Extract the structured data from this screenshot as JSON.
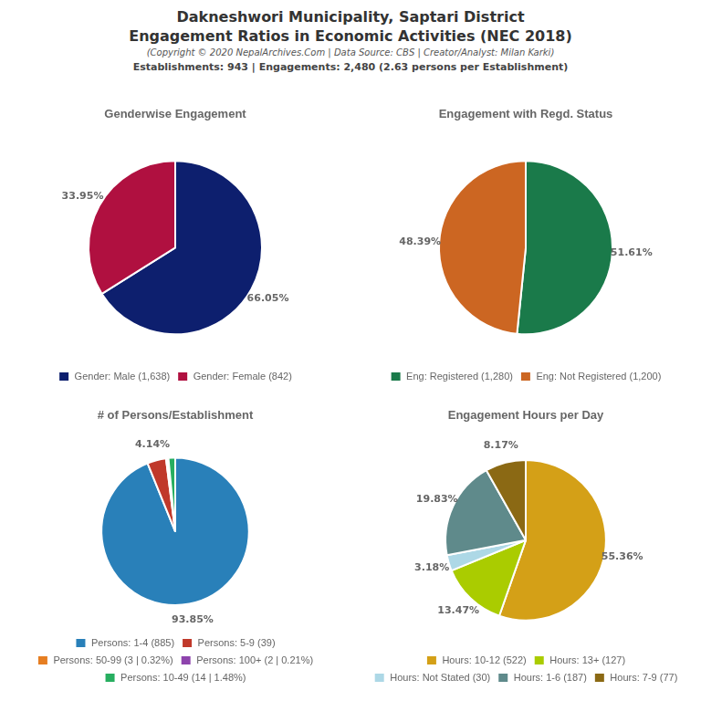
{
  "title": [
    "Dakneshwori Municipality, Saptari District",
    "Engagement Ratios in Economic Activities (NEC 2018)"
  ],
  "subtitle": "(Copyright © 2020 NepalArchives.Com | Data Source: CBS | Creator/Analyst: Milan Karki)",
  "annotations": [
    "Establishments: 943 | Engagements: 2,480 (2.63 persons per Establishment)"
  ],
  "chart_data": [
    {
      "type": "pie",
      "title": "Genderwise Engagement",
      "categories": [
        "Gender: Male (1,638)",
        "Gender: Female (842)"
      ],
      "values": [
        66.05,
        33.95
      ],
      "value_labels": [
        "66.05%",
        "33.95%"
      ],
      "colors": [
        "#0d1f6e",
        "#b01040"
      ],
      "data_labels": true,
      "legend": "bottom"
    },
    {
      "type": "pie",
      "title": "Engagement with Regd. Status",
      "categories": [
        "Eng: Registered (1,280)",
        "Eng: Not Registered (1,200)"
      ],
      "values": [
        51.61,
        48.39
      ],
      "value_labels": [
        "51.61%",
        "48.39%"
      ],
      "colors": [
        "#1a7a4a",
        "#cc6622"
      ],
      "data_labels": true,
      "legend": "bottom"
    },
    {
      "type": "pie",
      "title": "# of Persons/Establishment",
      "categories": [
        "Persons: 1-4 (885)",
        "Persons: 5-9 (39)",
        "Persons: 50-99 (3 | 0.32%)",
        "Persons: 100+ (2 | 0.21%)",
        "Persons: 10-49 (14 | 1.48%)"
      ],
      "values": [
        93.85,
        4.14,
        0.32,
        0.21,
        1.48
      ],
      "value_labels": [
        "93.85%",
        "4.14%",
        null,
        null,
        null
      ],
      "colors": [
        "#2980b9",
        "#c0392b",
        "#e67e22",
        "#8e44ad",
        "#27ae60"
      ],
      "data_labels": true,
      "legend": "bottom"
    },
    {
      "type": "pie",
      "title": "Engagement Hours per Day",
      "categories": [
        "Hours: 10-12 (522)",
        "Hours: 13+ (127)",
        "Hours: Not Stated (30)",
        "Hours: 1-6 (187)",
        "Hours: 7-9 (77)"
      ],
      "values": [
        55.36,
        13.47,
        3.18,
        19.83,
        8.17
      ],
      "value_labels": [
        "55.36%",
        "13.47%",
        "3.18%",
        "19.83%",
        "8.17%"
      ],
      "colors": [
        "#d4a017",
        "#aacc00",
        "#add8e6",
        "#5f8a8b",
        "#8b6914"
      ],
      "data_labels": true,
      "legend": "bottom"
    }
  ]
}
